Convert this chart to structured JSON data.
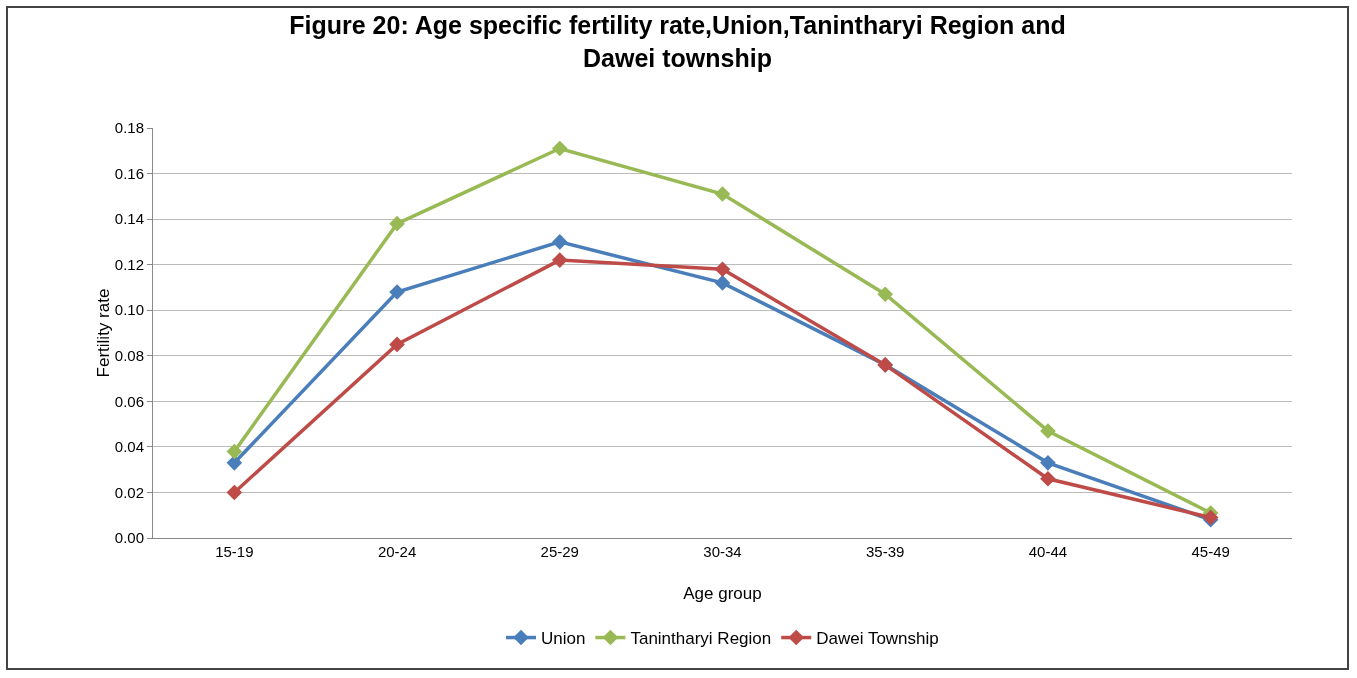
{
  "chart_data": {
    "type": "line",
    "title": "Figure 20: Age specific fertility rate,Union,Tanintharyi Region and\nDawei township",
    "xlabel": "Age group",
    "ylabel": "Fertility rate",
    "categories": [
      "15-19",
      "20-24",
      "25-29",
      "30-34",
      "35-39",
      "40-44",
      "45-49"
    ],
    "series": [
      {
        "name": "Union",
        "color": "#4a7ebb",
        "values": [
          0.033,
          0.108,
          0.13,
          0.112,
          0.076,
          0.033,
          0.008
        ]
      },
      {
        "name": "Tanintharyi Region",
        "color": "#98b954",
        "values": [
          0.038,
          0.138,
          0.171,
          0.151,
          0.107,
          0.047,
          0.011
        ]
      },
      {
        "name": "Dawei Township",
        "color": "#be4b48",
        "values": [
          0.02,
          0.085,
          0.122,
          0.118,
          0.076,
          0.026,
          0.009
        ]
      }
    ],
    "ylim": [
      0,
      0.18
    ],
    "yticks": [
      {
        "value": 0,
        "label": "0.00"
      },
      {
        "value": 0.02,
        "label": "0.02"
      },
      {
        "value": 0.04,
        "label": "0.04"
      },
      {
        "value": 0.06,
        "label": "0.06"
      },
      {
        "value": 0.08,
        "label": "0.08"
      },
      {
        "value": 0.1,
        "label": "0.10"
      },
      {
        "value": 0.12,
        "label": "0.12"
      },
      {
        "value": 0.14,
        "label": "0.14"
      },
      {
        "value": 0.16,
        "label": "0.16"
      },
      {
        "value": 0.18,
        "label": "0.18"
      }
    ],
    "grid": "y",
    "legend": "bottom",
    "marker": "diamond",
    "line_style": "solid"
  }
}
